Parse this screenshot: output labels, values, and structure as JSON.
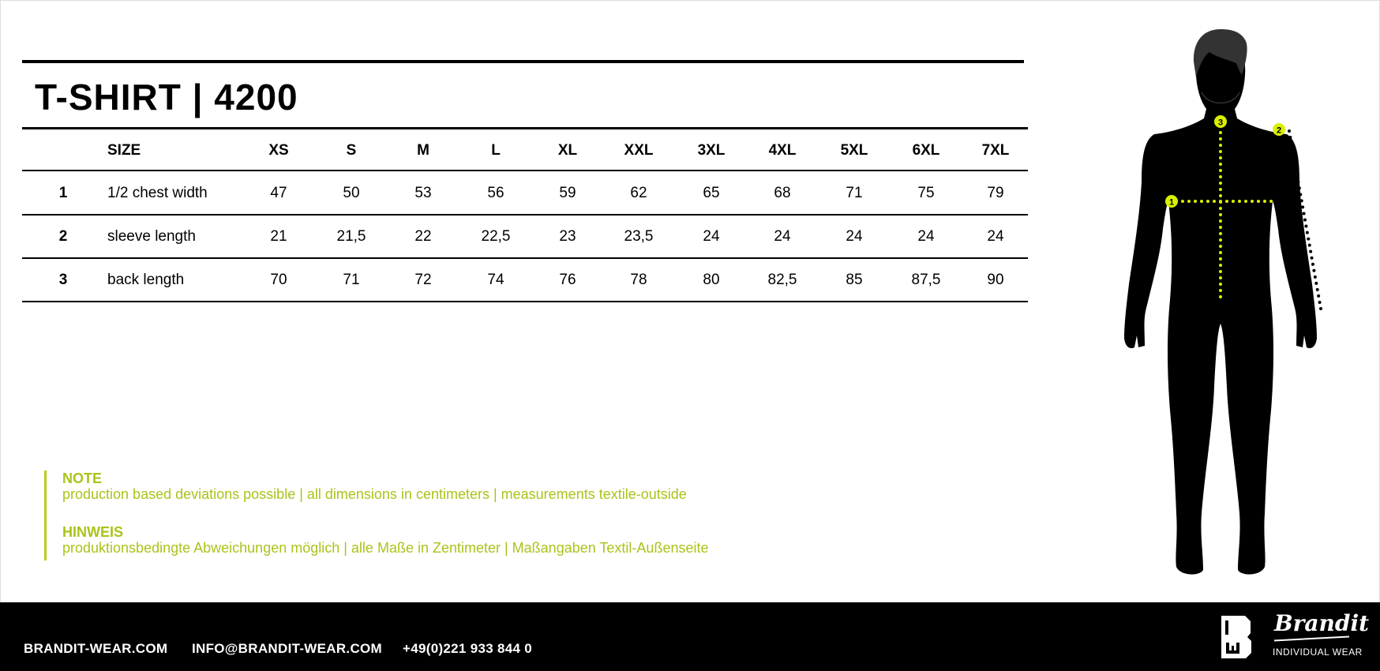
{
  "title": "T-SHIRT | 4200",
  "table": {
    "header": {
      "num": "",
      "label": "SIZE",
      "sizes": [
        "XS",
        "S",
        "M",
        "L",
        "XL",
        "XXL",
        "3XL",
        "4XL",
        "5XL",
        "6XL",
        "7XL"
      ]
    },
    "rows": [
      {
        "num": "1",
        "label": "1/2 chest width",
        "values": [
          "47",
          "50",
          "53",
          "56",
          "59",
          "62",
          "65",
          "68",
          "71",
          "75",
          "79"
        ]
      },
      {
        "num": "2",
        "label": "sleeve length",
        "values": [
          "21",
          "21,5",
          "22",
          "22,5",
          "23",
          "23,5",
          "24",
          "24",
          "24",
          "24",
          "24"
        ]
      },
      {
        "num": "3",
        "label": "back length",
        "values": [
          "70",
          "71",
          "72",
          "74",
          "76",
          "78",
          "80",
          "82,5",
          "85",
          "87,5",
          "90"
        ]
      }
    ]
  },
  "notes": {
    "en_heading": "NOTE",
    "en_text": "production based deviations possible | all dimensions in centimeters  |  measurements textile-outside",
    "de_heading": "HINWEIS",
    "de_text": "produktionsbedingte Abweichungen  möglich  |  alle Maße in Zentimeter  |  Maßangaben Textil-Außenseite"
  },
  "figure": {
    "markers": [
      "1",
      "2",
      "3"
    ],
    "marker_color": "#d9f000"
  },
  "footer": {
    "website": "BRANDIT-WEAR.COM",
    "email": "INFO@BRANDIT-WEAR.COM",
    "phone": "+49(0)221 933 844 0",
    "logo_wordmark": "Brandit",
    "logo_tagline": "INDIVIDUAL WEAR"
  },
  "colors": {
    "accent": "#b3c81a",
    "text": "#000000",
    "footer_bg": "#000000"
  }
}
